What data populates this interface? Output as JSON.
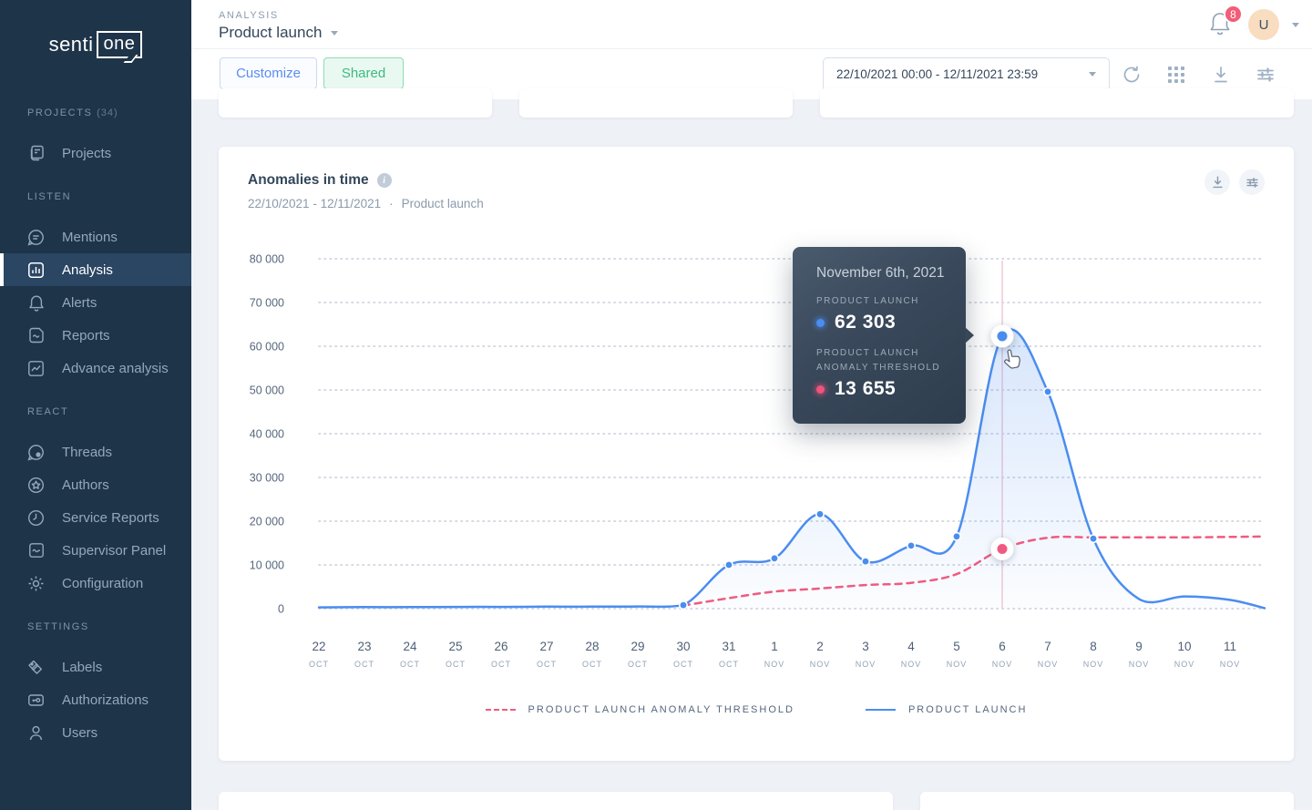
{
  "sidebar": {
    "logo": {
      "part1": "senti",
      "part2": "one"
    },
    "sections": [
      {
        "heading": "Projects",
        "count": "(34)",
        "items": [
          {
            "label": "Projects",
            "icon": "projects-icon",
            "active": false
          }
        ]
      },
      {
        "heading": "Listen",
        "count": "",
        "items": [
          {
            "label": "Mentions",
            "icon": "mentions-icon",
            "active": false
          },
          {
            "label": "Analysis",
            "icon": "analysis-icon",
            "active": true
          },
          {
            "label": "Alerts",
            "icon": "alerts-icon",
            "active": false
          },
          {
            "label": "Reports",
            "icon": "reports-icon",
            "active": false
          },
          {
            "label": "Advance analysis",
            "icon": "advance-analysis-icon",
            "active": false
          }
        ]
      },
      {
        "heading": "React",
        "count": "",
        "items": [
          {
            "label": "Threads",
            "icon": "threads-icon",
            "active": false
          },
          {
            "label": "Authors",
            "icon": "authors-icon",
            "active": false
          },
          {
            "label": "Service Reports",
            "icon": "service-reports-icon",
            "active": false
          },
          {
            "label": "Supervisor Panel",
            "icon": "supervisor-panel-icon",
            "active": false
          },
          {
            "label": "Configuration",
            "icon": "configuration-icon",
            "active": false
          }
        ]
      },
      {
        "heading": "Settings",
        "count": "",
        "items": [
          {
            "label": "Labels",
            "icon": "labels-icon",
            "active": false
          },
          {
            "label": "Authorizations",
            "icon": "authorizations-icon",
            "active": false
          },
          {
            "label": "Users",
            "icon": "users-icon",
            "active": false
          }
        ]
      }
    ]
  },
  "header": {
    "eyebrow": "Analysis",
    "title": "Product launch",
    "notification_count": "8",
    "avatar_initial": "U"
  },
  "toolbar": {
    "customize_label": "Customize",
    "shared_label": "Shared",
    "date_range": "22/10/2021 00:00 - 12/11/2021 23:59"
  },
  "chart_card": {
    "title": "Anomalies in time",
    "subtitle_date": "22/10/2021 - 12/11/2021",
    "subtitle_separator": "·",
    "subtitle_project": "Product launch"
  },
  "tooltip": {
    "date": "November 6th, 2021",
    "series1_label": "Product launch",
    "series1_value": "62 303",
    "series2_label_line1": "Product launch",
    "series2_label_line2": "anomaly threshold",
    "series2_value": "13 655"
  },
  "chart_data": {
    "type": "line",
    "title": "Anomalies in time",
    "x_days": [
      "22",
      "23",
      "24",
      "25",
      "26",
      "27",
      "28",
      "29",
      "30",
      "31",
      "1",
      "2",
      "3",
      "4",
      "5",
      "6",
      "7",
      "8",
      "9",
      "10",
      "11"
    ],
    "x_months": [
      "Oct",
      "Oct",
      "Oct",
      "Oct",
      "Oct",
      "Oct",
      "Oct",
      "Oct",
      "Oct",
      "Oct",
      "Nov",
      "Nov",
      "Nov",
      "Nov",
      "Nov",
      "Nov",
      "Nov",
      "Nov",
      "Nov",
      "Nov",
      "Nov"
    ],
    "ylim": [
      0,
      80000
    ],
    "ytick_labels": [
      "0",
      "10 000",
      "20 000",
      "30 000",
      "40 000",
      "50 000",
      "60 000",
      "70 000",
      "80 000"
    ],
    "grid": "dotted-horizontal",
    "legend_position": "bottom",
    "highlight": {
      "index": 15,
      "date_label": "November 6th, 2021",
      "product_launch": 62303,
      "anomaly_threshold": 13655
    },
    "series": [
      {
        "name": "Product launch",
        "color": "#4a8df0",
        "style": "solid",
        "values": [
          300,
          350,
          350,
          400,
          400,
          450,
          450,
          500,
          800,
          10000,
          11500,
          21600,
          10800,
          14400,
          16500,
          62303,
          49600,
          16000,
          2200,
          2800,
          2000
        ],
        "point_indices": [
          8,
          9,
          10,
          11,
          12,
          13,
          14,
          15,
          16,
          17
        ]
      },
      {
        "name": "Product launch anomaly threshold",
        "color": "#ef5b80",
        "style": "dashed",
        "values": [
          null,
          null,
          null,
          null,
          null,
          null,
          null,
          null,
          700,
          2400,
          3900,
          4600,
          5400,
          5900,
          7900,
          13655,
          16200,
          16300,
          16300,
          16300,
          16400
        ],
        "point_indices": [
          15
        ]
      }
    ],
    "legend": [
      {
        "label": "Product launch anomaly threshold",
        "color": "#ef5b80",
        "style": "dashed"
      },
      {
        "label": "Product launch",
        "color": "#4a8df0",
        "style": "solid"
      }
    ]
  }
}
